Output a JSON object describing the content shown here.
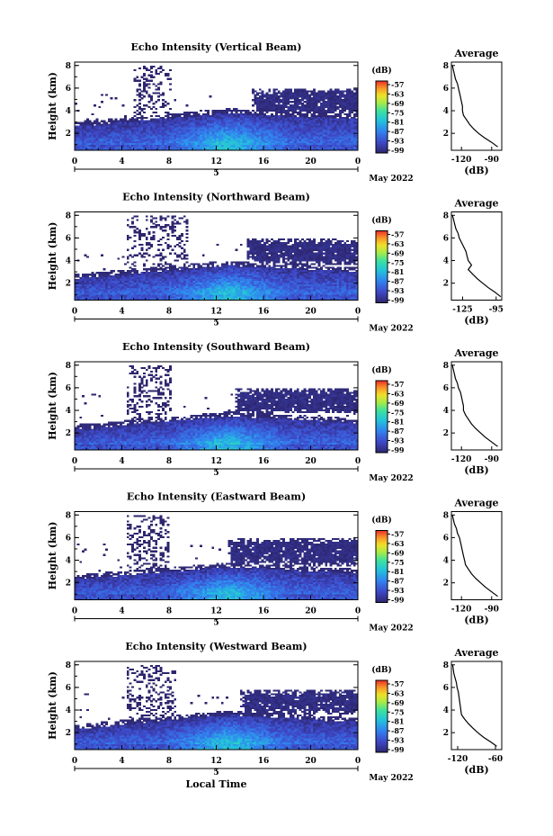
{
  "chart_data": [
    {
      "type": "heatmap",
      "title": "Echo Intensity (Vertical Beam)",
      "ylabel": "Height (km)",
      "yticks": [
        "2",
        "4",
        "6",
        "8"
      ],
      "xticks": [
        "0",
        "4",
        "8",
        "12",
        "16",
        "20",
        "0"
      ],
      "day_label": "5",
      "date_label": "May 2022",
      "xlim": [
        0,
        24
      ],
      "ylim": [
        0.5,
        8.3
      ],
      "colorbar": {
        "unit": "(dB)",
        "labels": [
          "-57",
          "-63",
          "-69",
          "-75",
          "-81",
          "-87",
          "-93",
          "-99"
        ]
      },
      "features": {
        "cloud_base_km": 3.6,
        "cloud_top_km": 6.0,
        "cloud_start_h": 16.0,
        "boundary_layer_km": [
          2.6,
          3.8,
          3.3
        ],
        "sparse_plume": {
          "x_range_h": [
            5.0,
            8.2
          ],
          "top_km": 8.0
        },
        "peak_dB": -75
      },
      "profile": {
        "title": "Average",
        "xlabel": "(dB)",
        "xticks": [
          "-120",
          "-90"
        ],
        "xlim": [
          -130,
          -80
        ],
        "ylim": [
          0.5,
          8.3
        ],
        "yticks": [
          "2",
          "4",
          "6",
          "8"
        ],
        "heights_km": [
          8.0,
          7.6,
          7.2,
          6.8,
          6.4,
          6.0,
          5.6,
          5.2,
          4.8,
          4.4,
          4.0,
          3.6,
          3.2,
          2.8,
          2.4,
          2.0,
          1.6,
          1.2,
          0.8
        ],
        "values_dB": [
          -129,
          -128,
          -127,
          -126,
          -124,
          -123,
          -122,
          -121,
          -120,
          -119,
          -119,
          -118,
          -115,
          -112,
          -108,
          -103,
          -97,
          -90,
          -84
        ]
      }
    },
    {
      "type": "heatmap",
      "title": "Echo Intensity (Northward Beam)",
      "ylabel": "Height (km)",
      "yticks": [
        "2",
        "4",
        "6",
        "8"
      ],
      "xticks": [
        "0",
        "4",
        "8",
        "12",
        "16",
        "20",
        "0"
      ],
      "day_label": "5",
      "date_label": "May 2022",
      "xlim": [
        0,
        24
      ],
      "ylim": [
        0.5,
        8.3
      ],
      "colorbar": {
        "unit": "(dB)",
        "labels": [
          "-57",
          "-63",
          "-69",
          "-75",
          "-81",
          "-87",
          "-93",
          "-99"
        ]
      },
      "features": {
        "cloud_base_km": 3.6,
        "cloud_top_km": 5.9,
        "cloud_start_h": 15.5,
        "boundary_layer_km": [
          2.4,
          3.6,
          3.0
        ],
        "sparse_plume": {
          "x_range_h": [
            4.5,
            9.5
          ],
          "top_km": 8.0
        },
        "peak_dB": -75
      },
      "profile": {
        "title": "Average",
        "xlabel": "(dB)",
        "xticks": [
          "-125",
          "-95"
        ],
        "xlim": [
          -135,
          -90
        ],
        "ylim": [
          0.5,
          8.3
        ],
        "yticks": [
          "2",
          "4",
          "6",
          "8"
        ],
        "heights_km": [
          8.0,
          7.6,
          7.2,
          6.8,
          6.4,
          6.0,
          5.6,
          5.2,
          4.8,
          4.4,
          4.0,
          3.6,
          3.2,
          2.8,
          2.4,
          2.0,
          1.6,
          1.2,
          0.8
        ],
        "values_dB": [
          -134,
          -133,
          -132,
          -131,
          -129,
          -128,
          -126,
          -124,
          -122,
          -121,
          -120,
          -117,
          -120,
          -116,
          -112,
          -107,
          -102,
          -96,
          -91
        ]
      }
    },
    {
      "type": "heatmap",
      "title": "Echo Intensity (Southward Beam)",
      "ylabel": "Height (km)",
      "yticks": [
        "2",
        "4",
        "6",
        "8"
      ],
      "xticks": [
        "0",
        "4",
        "8",
        "12",
        "16",
        "20",
        "0"
      ],
      "day_label": "5",
      "date_label": "May 2022",
      "xlim": [
        0,
        24
      ],
      "ylim": [
        0.5,
        8.3
      ],
      "colorbar": {
        "unit": "(dB)",
        "labels": [
          "-57",
          "-63",
          "-69",
          "-75",
          "-81",
          "-87",
          "-93",
          "-99"
        ]
      },
      "features": {
        "cloud_base_km": 3.7,
        "cloud_top_km": 6.0,
        "cloud_start_h": 14.5,
        "boundary_layer_km": [
          2.3,
          3.5,
          2.9
        ],
        "sparse_plume": {
          "x_range_h": [
            4.5,
            8.2
          ],
          "top_km": 8.0
        },
        "peak_dB": -75
      },
      "profile": {
        "title": "Average",
        "xlabel": "(dB)",
        "xticks": [
          "-120",
          "-90"
        ],
        "xlim": [
          -130,
          -80
        ],
        "ylim": [
          0.5,
          8.3
        ],
        "yticks": [
          "2",
          "4",
          "6",
          "8"
        ],
        "heights_km": [
          8.0,
          7.6,
          7.2,
          6.8,
          6.4,
          6.0,
          5.6,
          5.2,
          4.8,
          4.4,
          4.0,
          3.6,
          3.2,
          2.8,
          2.4,
          2.0,
          1.6,
          1.2,
          0.8
        ],
        "values_dB": [
          -129,
          -128,
          -127,
          -126,
          -124,
          -123,
          -121,
          -120,
          -119,
          -118,
          -118,
          -116,
          -113,
          -110,
          -106,
          -101,
          -96,
          -90,
          -84
        ]
      }
    },
    {
      "type": "heatmap",
      "title": "Echo Intensity (Eastward Beam)",
      "ylabel": "Height (km)",
      "yticks": [
        "2",
        "4",
        "6",
        "8"
      ],
      "xticks": [
        "0",
        "4",
        "8",
        "12",
        "16",
        "20",
        "0"
      ],
      "day_label": "5",
      "date_label": "May 2022",
      "xlim": [
        0,
        24
      ],
      "ylim": [
        0.5,
        8.3
      ],
      "colorbar": {
        "unit": "(dB)",
        "labels": [
          "-57",
          "-63",
          "-69",
          "-75",
          "-81",
          "-87",
          "-93",
          "-99"
        ]
      },
      "features": {
        "cloud_base_km": 3.5,
        "cloud_top_km": 5.9,
        "cloud_start_h": 14.0,
        "boundary_layer_km": [
          2.3,
          3.4,
          2.8
        ],
        "sparse_plume": {
          "x_range_h": [
            4.5,
            8.0
          ],
          "top_km": 8.0
        },
        "peak_dB": -75
      },
      "profile": {
        "title": "Average",
        "xlabel": "(dB)",
        "xticks": [
          "-120",
          "-90"
        ],
        "xlim": [
          -130,
          -80
        ],
        "ylim": [
          0.5,
          8.3
        ],
        "yticks": [
          "2",
          "4",
          "6",
          "8"
        ],
        "heights_km": [
          8.0,
          7.6,
          7.2,
          6.8,
          6.4,
          6.0,
          5.6,
          5.2,
          4.8,
          4.4,
          4.0,
          3.6,
          3.2,
          2.8,
          2.4,
          2.0,
          1.6,
          1.2,
          0.8
        ],
        "values_dB": [
          -129,
          -128,
          -127,
          -125,
          -124,
          -122,
          -121,
          -120,
          -119,
          -118,
          -117,
          -116,
          -113,
          -110,
          -106,
          -101,
          -96,
          -90,
          -84
        ]
      }
    },
    {
      "type": "heatmap",
      "title": "Echo Intensity (Westward Beam)",
      "ylabel": "Height (km)",
      "yticks": [
        "2",
        "4",
        "6",
        "8"
      ],
      "xticks": [
        "0",
        "4",
        "8",
        "12",
        "16",
        "20",
        "0"
      ],
      "day_label": "5",
      "date_label": "May 2022",
      "xlabel": "Local Time",
      "xlim": [
        0,
        24
      ],
      "ylim": [
        0.5,
        8.3
      ],
      "colorbar": {
        "unit": "(dB)",
        "labels": [
          "-57",
          "-63",
          "-69",
          "-75",
          "-81",
          "-87",
          "-93",
          "-99"
        ]
      },
      "features": {
        "cloud_base_km": 3.6,
        "cloud_top_km": 5.8,
        "cloud_start_h": 15.0,
        "boundary_layer_km": [
          2.3,
          3.6,
          2.9
        ],
        "sparse_plume": {
          "x_range_h": [
            4.5,
            8.5
          ],
          "top_km": 8.0
        },
        "peak_dB": -75
      },
      "profile": {
        "title": "Average",
        "xlabel": "(dB)",
        "xticks": [
          "-120",
          "-60"
        ],
        "xlim": [
          -130,
          -50
        ],
        "ylim": [
          0.5,
          8.3
        ],
        "yticks": [
          "2",
          "4",
          "6",
          "8"
        ],
        "heights_km": [
          8.0,
          7.6,
          7.2,
          6.8,
          6.4,
          6.0,
          5.6,
          5.2,
          4.8,
          4.4,
          4.0,
          3.6,
          3.2,
          2.8,
          2.4,
          2.0,
          1.6,
          1.2,
          0.8
        ],
        "values_dB": [
          -128,
          -127,
          -126,
          -124,
          -122,
          -121,
          -119,
          -118,
          -117,
          -116,
          -115,
          -114,
          -109,
          -103,
          -96,
          -88,
          -79,
          -68,
          -58
        ]
      }
    }
  ]
}
